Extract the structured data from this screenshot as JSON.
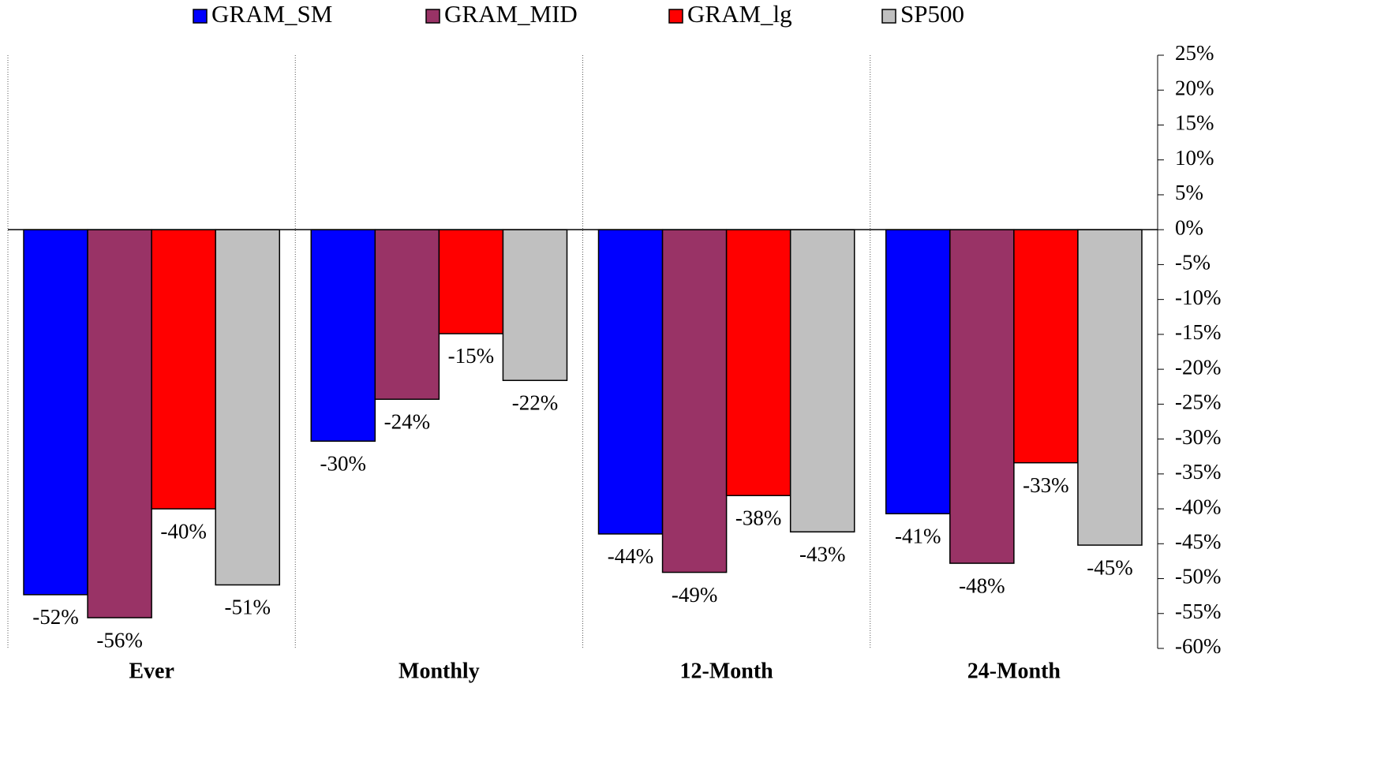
{
  "chart_data": {
    "type": "bar",
    "categories": [
      "Ever",
      "Monthly",
      "12-Month",
      "24-Month"
    ],
    "series": [
      {
        "name": "GRAM_SM",
        "color": "#0000ff",
        "values": [
          -52.3,
          -30.3,
          -43.6,
          -40.7
        ],
        "value_labels": [
          "-52%",
          "-30%",
          "-44%",
          "-41%"
        ]
      },
      {
        "name": "GRAM_MID",
        "color": "#993366",
        "values": [
          -55.6,
          -24.3,
          -49.1,
          -47.8
        ],
        "value_labels": [
          "-56%",
          "-24%",
          "-49%",
          "-48%"
        ]
      },
      {
        "name": "GRAM_lg",
        "color": "#ff0000",
        "values": [
          -40.0,
          -14.9,
          -38.1,
          -33.4
        ],
        "value_labels": [
          "-40%",
          "-15%",
          "-38%",
          "-33%"
        ]
      },
      {
        "name": "SP500",
        "color": "#c0c0c0",
        "values": [
          -50.9,
          -21.6,
          -43.3,
          -45.2
        ],
        "value_labels": [
          "-51%",
          "-22%",
          "-43%",
          "-45%"
        ]
      }
    ],
    "ylim": [
      -60,
      25
    ],
    "yticks": [
      {
        "value": 25,
        "label": "25%"
      },
      {
        "value": 20,
        "label": "20%"
      },
      {
        "value": 15,
        "label": "15%"
      },
      {
        "value": 10,
        "label": "10%"
      },
      {
        "value": 5,
        "label": "5%"
      },
      {
        "value": 0,
        "label": "0%"
      },
      {
        "value": -5,
        "label": "-5%"
      },
      {
        "value": -10,
        "label": "-10%"
      },
      {
        "value": -15,
        "label": "-15%"
      },
      {
        "value": -20,
        "label": "-20%"
      },
      {
        "value": -25,
        "label": "-25%"
      },
      {
        "value": -30,
        "label": "-30%"
      },
      {
        "value": -35,
        "label": "-35%"
      },
      {
        "value": -40,
        "label": "-40%"
      },
      {
        "value": -45,
        "label": "-45%"
      },
      {
        "value": -50,
        "label": "-50%"
      },
      {
        "value": -55,
        "label": "-55%"
      },
      {
        "value": -60,
        "label": "-60%"
      }
    ],
    "legend": "top"
  }
}
